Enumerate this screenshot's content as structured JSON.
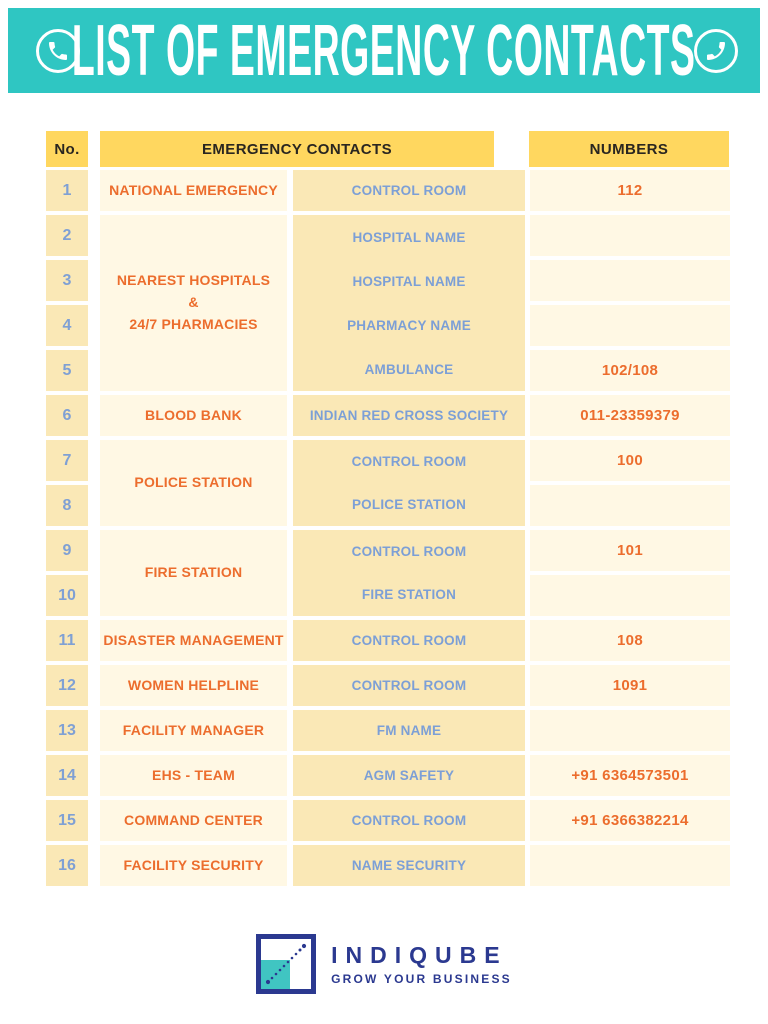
{
  "banner": {
    "title": "LIST OF EMERGENCY CONTACTS",
    "left_icon": "phone-receiver",
    "right_icon": "phone-receiver-mirrored",
    "bg_color": "#2FC6C2",
    "text_color": "#FFFFFF"
  },
  "table": {
    "headers": {
      "no": "No.",
      "contacts": "EMERGENCY CONTACTS",
      "numbers": "NUMBERS"
    },
    "colors": {
      "header_bg": "#FFD75F",
      "tan_cell": "#FAE8B6",
      "cream_cell": "#FFF8E4",
      "orange_text": "#EC6D2D",
      "blue_text": "#7C9FD6",
      "header_text": "#2A2620"
    },
    "groups": [
      {
        "category": "NATIONAL EMERGENCY",
        "rows": [
          {
            "no": "1",
            "sub": "CONTROL ROOM",
            "number": "112"
          }
        ]
      },
      {
        "category": "NEAREST HOSPITALS\n&\n24/7 PHARMACIES",
        "rows": [
          {
            "no": "2",
            "sub": "HOSPITAL NAME",
            "number": ""
          },
          {
            "no": "3",
            "sub": "HOSPITAL NAME",
            "number": ""
          },
          {
            "no": "4",
            "sub": "PHARMACY NAME",
            "number": ""
          },
          {
            "no": "5",
            "sub": "AMBULANCE",
            "number": "102/108"
          }
        ]
      },
      {
        "category": "BLOOD BANK",
        "rows": [
          {
            "no": "6",
            "sub": "INDIAN RED CROSS SOCIETY",
            "number": "011-23359379"
          }
        ]
      },
      {
        "category": "POLICE STATION",
        "rows": [
          {
            "no": "7",
            "sub": "CONTROL ROOM",
            "number": "100"
          },
          {
            "no": "8",
            "sub": "POLICE STATION",
            "number": ""
          }
        ]
      },
      {
        "category": "FIRE STATION",
        "rows": [
          {
            "no": "9",
            "sub": "CONTROL ROOM",
            "number": "101"
          },
          {
            "no": "10",
            "sub": "FIRE STATION",
            "number": ""
          }
        ]
      },
      {
        "category": "DISASTER MANAGEMENT",
        "rows": [
          {
            "no": "11",
            "sub": "CONTROL ROOM",
            "number": "108"
          }
        ]
      },
      {
        "category": "WOMEN HELPLINE",
        "rows": [
          {
            "no": "12",
            "sub": "CONTROL ROOM",
            "number": "1091"
          }
        ]
      },
      {
        "category": "FACILITY MANAGER",
        "rows": [
          {
            "no": "13",
            "sub": "FM NAME",
            "number": ""
          }
        ]
      },
      {
        "category": "EHS - TEAM",
        "rows": [
          {
            "no": "14",
            "sub": "AGM SAFETY",
            "number": "+91 6364573501"
          }
        ]
      },
      {
        "category": "COMMAND CENTER",
        "rows": [
          {
            "no": "15",
            "sub": "CONTROL ROOM",
            "number": "+91 6366382214"
          }
        ]
      },
      {
        "category": "FACILITY SECURITY",
        "rows": [
          {
            "no": "16",
            "sub": "NAME SECURITY",
            "number": ""
          }
        ]
      }
    ]
  },
  "footer": {
    "brand": "INDIQUBE",
    "tagline": "GROW YOUR BUSINESS",
    "brand_color": "#2B3990",
    "logo_teal": "#40C5C2",
    "logo_icon": "indiqube-growth-square"
  }
}
